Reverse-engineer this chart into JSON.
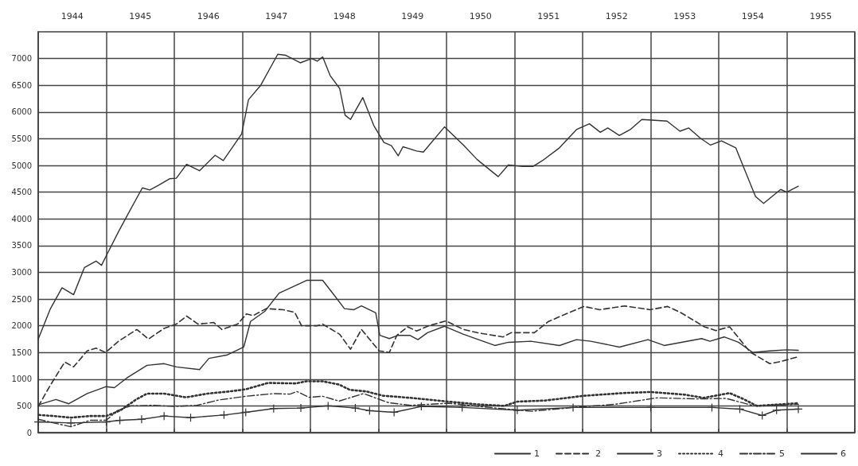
{
  "chart_data": {
    "type": "line",
    "xlim": [
      1944,
      1956
    ],
    "ylim": [
      0,
      7500
    ],
    "xticks": [
      {
        "value": 1944,
        "label": null
      },
      {
        "value": 1944.5,
        "label": "1944"
      },
      {
        "value": 1945,
        "label": null
      },
      {
        "value": 1945.5,
        "label": "1945"
      },
      {
        "value": 1946,
        "label": null
      },
      {
        "value": 1946.5,
        "label": "1946"
      },
      {
        "value": 1947,
        "label": null
      },
      {
        "value": 1947.5,
        "label": "1947"
      },
      {
        "value": 1948,
        "label": null
      },
      {
        "value": 1948.5,
        "label": "1948"
      },
      {
        "value": 1949,
        "label": null
      },
      {
        "value": 1949.5,
        "label": "1949"
      },
      {
        "value": 1950,
        "label": null
      },
      {
        "value": 1950.5,
        "label": "1950"
      },
      {
        "value": 1951,
        "label": null
      },
      {
        "value": 1951.5,
        "label": "1951"
      },
      {
        "value": 1952,
        "label": null
      },
      {
        "value": 1952.5,
        "label": "1952"
      },
      {
        "value": 1953,
        "label": null
      },
      {
        "value": 1953.5,
        "label": "1953"
      },
      {
        "value": 1954,
        "label": null
      },
      {
        "value": 1954.5,
        "label": "1954"
      },
      {
        "value": 1955,
        "label": null
      },
      {
        "value": 1955.5,
        "label": "1955"
      },
      {
        "value": 1956,
        "label": null
      }
    ],
    "yticks": [
      0,
      500,
      1000,
      1500,
      2000,
      2500,
      3000,
      3500,
      4000,
      4500,
      5000,
      5500,
      6000,
      6500,
      7000
    ],
    "grid": true,
    "legend": "bottom right",
    "marker": "none",
    "series": [
      {
        "name": "1",
        "color": "#333333",
        "line_style": "solid",
        "x": [
          1944.0,
          1944.18,
          1944.35,
          1944.52,
          1944.68,
          1944.85,
          1944.93,
          1945.02,
          1945.18,
          1945.35,
          1945.53,
          1945.64,
          1945.77,
          1945.93,
          1946.03,
          1946.18,
          1946.37,
          1946.6,
          1946.72,
          1946.99,
          1947.09,
          1947.27,
          1947.52,
          1947.64,
          1947.85,
          1948.02,
          1948.1,
          1948.18,
          1948.29,
          1948.43,
          1948.51,
          1948.59,
          1948.77,
          1948.93,
          1949.08,
          1949.19,
          1949.29,
          1949.36,
          1949.56,
          1949.66,
          1949.97,
          1950.25,
          1950.45,
          1950.76,
          1950.91,
          1951.12,
          1951.27,
          1951.41,
          1951.66,
          1951.91,
          1952.1,
          1952.26,
          1952.37,
          1952.54,
          1952.7,
          1952.87,
          1953.24,
          1953.43,
          1953.56,
          1953.73,
          1953.88,
          1954.04,
          1954.25,
          1954.54,
          1954.66,
          1954.91,
          1955.0,
          1955.17
        ],
        "values": [
          1750,
          2320,
          2710,
          2580,
          3090,
          3210,
          3130,
          3360,
          3760,
          4160,
          4580,
          4540,
          4630,
          4750,
          4760,
          5020,
          4900,
          5190,
          5090,
          5590,
          6230,
          6500,
          7080,
          7060,
          6920,
          7000,
          6950,
          7030,
          6680,
          6440,
          5940,
          5860,
          6270,
          5750,
          5430,
          5370,
          5180,
          5350,
          5270,
          5250,
          5720,
          5380,
          5110,
          4790,
          5010,
          4980,
          4980,
          5090,
          5330,
          5670,
          5780,
          5620,
          5700,
          5560,
          5670,
          5860,
          5830,
          5640,
          5700,
          5510,
          5380,
          5460,
          5330,
          4420,
          4290,
          4550,
          4500,
          4610
        ]
      },
      {
        "name": "2",
        "color": "#333333",
        "line_style": "dashed",
        "x": [
          1944.0,
          1944.18,
          1944.39,
          1944.52,
          1944.72,
          1944.85,
          1944.99,
          1945.18,
          1945.45,
          1945.62,
          1945.85,
          1946.03,
          1946.18,
          1946.35,
          1946.58,
          1946.7,
          1946.93,
          1947.06,
          1947.16,
          1947.35,
          1947.6,
          1947.77,
          1947.87,
          1948.1,
          1948.18,
          1948.43,
          1948.59,
          1948.75,
          1949.01,
          1949.16,
          1949.27,
          1949.43,
          1949.56,
          1949.74,
          1949.99,
          1950.25,
          1950.45,
          1950.83,
          1950.95,
          1951.29,
          1951.5,
          1951.79,
          1952.02,
          1952.25,
          1952.62,
          1952.99,
          1953.25,
          1953.45,
          1953.79,
          1953.96,
          1954.16,
          1954.46,
          1954.75,
          1954.91,
          1955.17
        ],
        "values": [
          490,
          890,
          1320,
          1230,
          1530,
          1580,
          1500,
          1710,
          1930,
          1750,
          1950,
          2030,
          2180,
          2030,
          2060,
          1930,
          2030,
          2220,
          2190,
          2320,
          2300,
          2250,
          2000,
          2000,
          2030,
          1840,
          1560,
          1930,
          1530,
          1500,
          1820,
          1980,
          1900,
          2000,
          2090,
          1930,
          1870,
          1790,
          1870,
          1870,
          2080,
          2240,
          2360,
          2300,
          2370,
          2300,
          2360,
          2240,
          1980,
          1910,
          1980,
          1510,
          1290,
          1330,
          1420
        ]
      },
      {
        "name": "3",
        "color": "#333333",
        "line_style": "solid",
        "x": [
          1944.0,
          1944.26,
          1944.45,
          1944.72,
          1945.0,
          1945.12,
          1945.3,
          1945.6,
          1945.85,
          1946.03,
          1946.37,
          1946.51,
          1946.77,
          1947.02,
          1947.12,
          1947.33,
          1947.54,
          1947.73,
          1947.95,
          1948.18,
          1948.35,
          1948.5,
          1948.64,
          1948.75,
          1948.96,
          1949.02,
          1949.16,
          1949.29,
          1949.46,
          1949.58,
          1949.72,
          1949.97,
          1950.25,
          1950.71,
          1950.91,
          1951.24,
          1951.66,
          1951.91,
          1952.12,
          1952.54,
          1952.96,
          1953.2,
          1953.75,
          1953.87,
          1954.08,
          1954.29,
          1954.5,
          1954.75,
          1955.0,
          1955.17
        ],
        "values": [
          520,
          620,
          540,
          730,
          860,
          840,
          1020,
          1260,
          1290,
          1230,
          1180,
          1390,
          1450,
          1600,
          2080,
          2270,
          2610,
          2720,
          2850,
          2850,
          2570,
          2320,
          2300,
          2370,
          2240,
          1820,
          1760,
          1820,
          1820,
          1740,
          1870,
          1990,
          1840,
          1630,
          1690,
          1710,
          1630,
          1740,
          1710,
          1600,
          1740,
          1630,
          1760,
          1710,
          1790,
          1690,
          1500,
          1530,
          1550,
          1540
        ]
      },
      {
        "name": "4",
        "color": "#333333",
        "line_style": "dotted",
        "x": [
          1944.01,
          1944.23,
          1944.48,
          1944.76,
          1945.0,
          1945.2,
          1945.44,
          1945.6,
          1945.85,
          1946.17,
          1946.49,
          1946.81,
          1947.05,
          1947.38,
          1947.78,
          1947.94,
          1948.18,
          1948.42,
          1948.58,
          1948.82,
          1949.07,
          1949.47,
          1950.03,
          1950.44,
          1950.85,
          1951.04,
          1951.45,
          1952.03,
          1952.6,
          1953.0,
          1953.5,
          1953.78,
          1954.16,
          1954.36,
          1954.56,
          1955.17
        ],
        "values": [
          330,
          310,
          280,
          310,
          310,
          410,
          620,
          730,
          730,
          660,
          730,
          770,
          810,
          930,
          920,
          960,
          960,
          900,
          800,
          770,
          690,
          650,
          580,
          530,
          500,
          580,
          600,
          690,
          740,
          760,
          710,
          650,
          740,
          630,
          500,
          550
        ]
      },
      {
        "name": "5",
        "color": "#333333",
        "line_style": "dashdot",
        "x": [
          1944.0,
          1944.23,
          1944.48,
          1944.76,
          1945.0,
          1945.16,
          1945.36,
          1945.68,
          1946.01,
          1946.33,
          1946.65,
          1947.05,
          1947.46,
          1947.7,
          1947.8,
          1947.98,
          1948.18,
          1948.42,
          1948.78,
          1949.15,
          1949.47,
          1950.03,
          1950.64,
          1951.25,
          1951.86,
          1952.48,
          1953.09,
          1953.71,
          1954.11,
          1954.52,
          1955.17
        ],
        "values": [
          250,
          180,
          110,
          230,
          230,
          410,
          500,
          510,
          490,
          510,
          610,
          680,
          730,
          720,
          770,
          660,
          680,
          590,
          730,
          560,
          510,
          550,
          470,
          400,
          470,
          530,
          650,
          630,
          640,
          500,
          530
        ]
      },
      {
        "name": "6",
        "color": "#333333",
        "line_style": "solid",
        "marker": "cross",
        "x": [
          1944.0,
          1944.48,
          1945.0,
          1945.2,
          1945.52,
          1945.85,
          1946.24,
          1946.73,
          1947.05,
          1947.46,
          1947.86,
          1948.26,
          1948.66,
          1948.87,
          1949.23,
          1949.63,
          1950.23,
          1951.04,
          1951.86,
          1953.0,
          1953.9,
          1954.31,
          1954.64,
          1954.85,
          1955.17
        ],
        "values": [
          200,
          180,
          200,
          230,
          250,
          310,
          280,
          330,
          380,
          450,
          460,
          500,
          460,
          410,
          380,
          490,
          470,
          420,
          470,
          470,
          470,
          440,
          320,
          420,
          440
        ]
      }
    ]
  }
}
